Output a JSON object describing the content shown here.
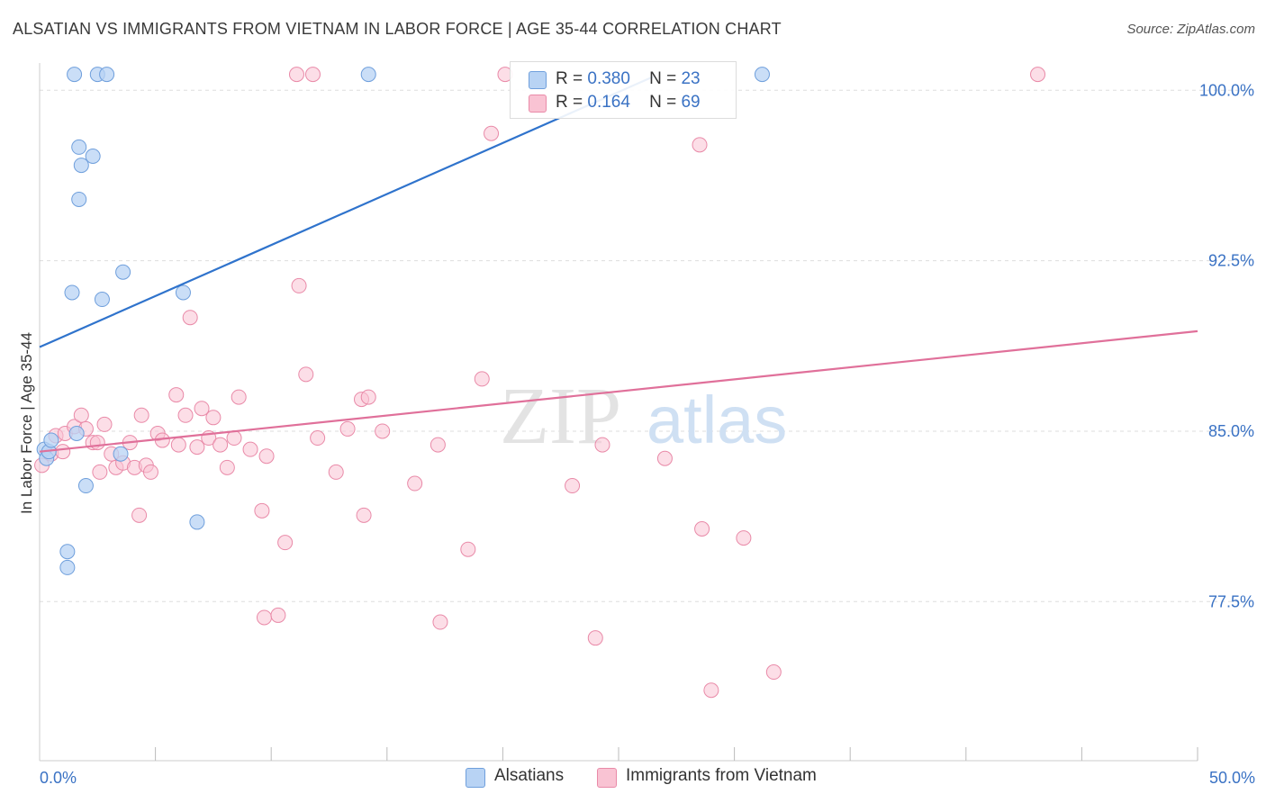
{
  "title": "ALSATIAN VS IMMIGRANTS FROM VIETNAM IN LABOR FORCE | AGE 35-44 CORRELATION CHART",
  "source": "Source: ZipAtlas.com",
  "watermark": {
    "zip": "ZIP",
    "atlas": "atlas"
  },
  "legend": {
    "r_label": "R =",
    "n_label": "N =",
    "series1": {
      "r": "0.380",
      "n": "23"
    },
    "series2": {
      "r": "0.164",
      "n": "69"
    }
  },
  "colors": {
    "blue_fill": "#b8d3f4",
    "blue_stroke": "#6f9fdc",
    "blue_line": "#2f73cc",
    "pink_fill": "#f9c3d3",
    "pink_stroke": "#e98aa8",
    "pink_line": "#e0709a",
    "axis_text": "#3a72c4",
    "grid": "#dddddd"
  },
  "chart_data": {
    "type": "scatter",
    "title": "ALSATIAN VS IMMIGRANTS FROM VIETNAM IN LABOR FORCE | AGE 35-44 CORRELATION CHART",
    "xlabel": "",
    "ylabel": "In Labor Force | Age 35-44",
    "xlim": [
      0,
      50
    ],
    "ylim": [
      70.5,
      101.2
    ],
    "x_tick_labels": [
      "0.0%",
      "50.0%"
    ],
    "y_ticks": [
      77.5,
      85.0,
      92.5,
      100.0
    ],
    "y_tick_labels": [
      "77.5%",
      "85.0%",
      "92.5%",
      "100.0%"
    ],
    "grid": true,
    "legend_position": "top-center",
    "series": [
      {
        "name": "Alsatians",
        "color": "#6f9fdc",
        "r": 0.38,
        "n": 23,
        "trend": {
          "x": [
            0,
            26.5
          ],
          "y": [
            88.7,
            100.6
          ]
        },
        "points": [
          {
            "x": 0.2,
            "y": 84.2
          },
          {
            "x": 0.3,
            "y": 83.8
          },
          {
            "x": 0.4,
            "y": 84.1
          },
          {
            "x": 0.5,
            "y": 84.6
          },
          {
            "x": 1.2,
            "y": 79.7
          },
          {
            "x": 1.2,
            "y": 79.0
          },
          {
            "x": 1.4,
            "y": 91.1
          },
          {
            "x": 1.5,
            "y": 100.7
          },
          {
            "x": 1.7,
            "y": 97.5
          },
          {
            "x": 1.6,
            "y": 84.9
          },
          {
            "x": 1.7,
            "y": 95.2
          },
          {
            "x": 1.8,
            "y": 96.7
          },
          {
            "x": 2.0,
            "y": 82.6
          },
          {
            "x": 2.3,
            "y": 97.1
          },
          {
            "x": 2.7,
            "y": 90.8
          },
          {
            "x": 2.5,
            "y": 100.7
          },
          {
            "x": 2.9,
            "y": 100.7
          },
          {
            "x": 3.5,
            "y": 84.0
          },
          {
            "x": 3.6,
            "y": 92.0
          },
          {
            "x": 6.2,
            "y": 91.1
          },
          {
            "x": 6.8,
            "y": 81.0
          },
          {
            "x": 14.2,
            "y": 100.7
          },
          {
            "x": 31.2,
            "y": 100.7
          }
        ]
      },
      {
        "name": "Immigrants from Vietnam",
        "color": "#e98aa8",
        "r": 0.164,
        "n": 69,
        "trend": {
          "x": [
            0,
            50
          ],
          "y": [
            84.1,
            89.4
          ]
        },
        "points": [
          {
            "x": 0.1,
            "y": 83.5
          },
          {
            "x": 0.5,
            "y": 84.0
          },
          {
            "x": 0.7,
            "y": 84.8
          },
          {
            "x": 1.1,
            "y": 84.9
          },
          {
            "x": 1.5,
            "y": 85.2
          },
          {
            "x": 1.8,
            "y": 85.7
          },
          {
            "x": 2.0,
            "y": 85.1
          },
          {
            "x": 2.3,
            "y": 84.5
          },
          {
            "x": 2.6,
            "y": 83.2
          },
          {
            "x": 2.8,
            "y": 85.3
          },
          {
            "x": 3.1,
            "y": 84.0
          },
          {
            "x": 3.3,
            "y": 83.4
          },
          {
            "x": 3.6,
            "y": 83.6
          },
          {
            "x": 3.9,
            "y": 84.5
          },
          {
            "x": 4.1,
            "y": 83.4
          },
          {
            "x": 4.3,
            "y": 81.3
          },
          {
            "x": 4.4,
            "y": 85.7
          },
          {
            "x": 4.6,
            "y": 83.5
          },
          {
            "x": 5.1,
            "y": 84.9
          },
          {
            "x": 5.3,
            "y": 84.6
          },
          {
            "x": 5.9,
            "y": 86.6
          },
          {
            "x": 6.3,
            "y": 85.7
          },
          {
            "x": 6.5,
            "y": 90.0
          },
          {
            "x": 6.8,
            "y": 84.3
          },
          {
            "x": 7.0,
            "y": 86.0
          },
          {
            "x": 7.3,
            "y": 84.7
          },
          {
            "x": 7.5,
            "y": 85.6
          },
          {
            "x": 7.8,
            "y": 84.4
          },
          {
            "x": 8.1,
            "y": 83.4
          },
          {
            "x": 8.4,
            "y": 84.7
          },
          {
            "x": 8.6,
            "y": 86.5
          },
          {
            "x": 9.1,
            "y": 84.2
          },
          {
            "x": 9.6,
            "y": 81.5
          },
          {
            "x": 9.8,
            "y": 83.9
          },
          {
            "x": 9.7,
            "y": 76.8
          },
          {
            "x": 10.3,
            "y": 76.9
          },
          {
            "x": 10.6,
            "y": 80.1
          },
          {
            "x": 11.1,
            "y": 100.7
          },
          {
            "x": 11.2,
            "y": 91.4
          },
          {
            "x": 11.5,
            "y": 87.5
          },
          {
            "x": 11.8,
            "y": 100.7
          },
          {
            "x": 12.0,
            "y": 84.7
          },
          {
            "x": 12.8,
            "y": 83.2
          },
          {
            "x": 13.3,
            "y": 85.1
          },
          {
            "x": 13.9,
            "y": 86.4
          },
          {
            "x": 14.0,
            "y": 81.3
          },
          {
            "x": 14.2,
            "y": 86.5
          },
          {
            "x": 14.8,
            "y": 85.0
          },
          {
            "x": 16.2,
            "y": 82.7
          },
          {
            "x": 17.2,
            "y": 84.4
          },
          {
            "x": 17.3,
            "y": 76.6
          },
          {
            "x": 18.5,
            "y": 79.8
          },
          {
            "x": 19.1,
            "y": 87.3
          },
          {
            "x": 19.5,
            "y": 98.1
          },
          {
            "x": 20.1,
            "y": 100.7
          },
          {
            "x": 23.0,
            "y": 82.6
          },
          {
            "x": 24.0,
            "y": 75.9
          },
          {
            "x": 24.3,
            "y": 84.4
          },
          {
            "x": 27.0,
            "y": 83.8
          },
          {
            "x": 28.5,
            "y": 97.6
          },
          {
            "x": 28.6,
            "y": 80.7
          },
          {
            "x": 29.0,
            "y": 73.6
          },
          {
            "x": 30.4,
            "y": 80.3
          },
          {
            "x": 31.7,
            "y": 74.4
          },
          {
            "x": 43.1,
            "y": 100.7
          },
          {
            "x": 1.0,
            "y": 84.1
          },
          {
            "x": 2.5,
            "y": 84.5
          },
          {
            "x": 4.8,
            "y": 83.2
          },
          {
            "x": 6.0,
            "y": 84.4
          }
        ]
      }
    ]
  }
}
